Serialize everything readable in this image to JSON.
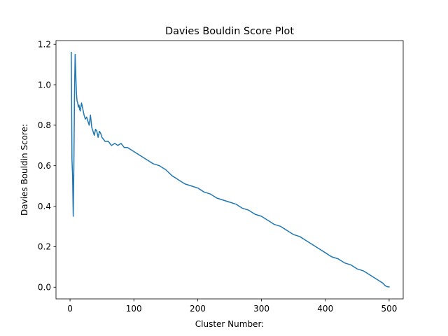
{
  "chart_data": {
    "type": "line",
    "title": "Davies Bouldin Score Plot",
    "xlabel": "Cluster Number:",
    "ylabel": "Davies Bouldin Score:",
    "xlim": [
      -22,
      522
    ],
    "ylim": [
      -0.058,
      1.218
    ],
    "xticks": [
      0,
      100,
      200,
      300,
      400,
      500
    ],
    "yticks": [
      0.0,
      0.2,
      0.4,
      0.6,
      0.8,
      1.0,
      1.2
    ],
    "grid": false,
    "line_color": "#1f77b4",
    "series": [
      {
        "x": [
          2,
          3,
          4,
          5,
          6,
          7,
          8,
          9,
          10,
          11,
          12,
          13,
          14,
          15,
          16,
          18,
          20,
          22,
          24,
          26,
          28,
          30,
          32,
          34,
          36,
          38,
          40,
          42,
          44,
          46,
          48,
          50,
          55,
          60,
          65,
          70,
          75,
          80,
          85,
          90,
          95,
          100,
          110,
          120,
          130,
          140,
          150,
          160,
          170,
          180,
          190,
          200,
          210,
          220,
          230,
          240,
          250,
          260,
          270,
          280,
          290,
          300,
          310,
          320,
          330,
          340,
          350,
          360,
          370,
          380,
          390,
          400,
          410,
          420,
          430,
          440,
          450,
          460,
          470,
          480,
          485,
          490,
          493,
          496,
          500
        ],
        "values": [
          1.16,
          0.63,
          0.55,
          0.35,
          0.6,
          0.95,
          1.15,
          1.05,
          0.96,
          0.92,
          0.91,
          0.89,
          0.9,
          0.88,
          0.87,
          0.91,
          0.88,
          0.85,
          0.83,
          0.84,
          0.82,
          0.8,
          0.85,
          0.79,
          0.77,
          0.75,
          0.78,
          0.77,
          0.74,
          0.77,
          0.76,
          0.74,
          0.72,
          0.72,
          0.7,
          0.71,
          0.7,
          0.71,
          0.69,
          0.69,
          0.68,
          0.67,
          0.65,
          0.63,
          0.61,
          0.6,
          0.58,
          0.55,
          0.53,
          0.51,
          0.5,
          0.49,
          0.47,
          0.46,
          0.44,
          0.43,
          0.42,
          0.41,
          0.39,
          0.38,
          0.36,
          0.35,
          0.33,
          0.31,
          0.3,
          0.28,
          0.26,
          0.25,
          0.23,
          0.21,
          0.19,
          0.17,
          0.15,
          0.14,
          0.12,
          0.11,
          0.09,
          0.08,
          0.06,
          0.04,
          0.03,
          0.02,
          0.01,
          0.003,
          0.001
        ]
      }
    ]
  }
}
